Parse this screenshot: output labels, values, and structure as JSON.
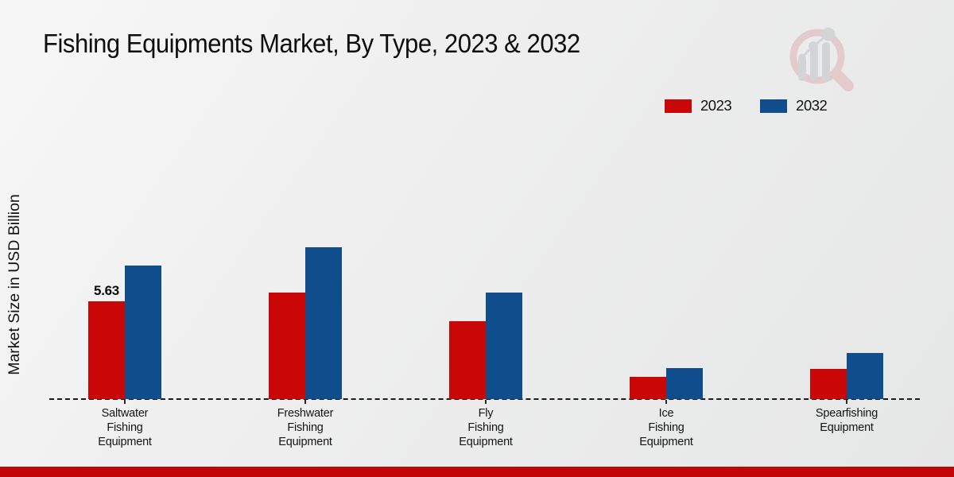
{
  "page": {
    "title": "Fishing Equipments Market, By Type, 2023 & 2032",
    "ylabel": "Market Size in USD Billion"
  },
  "legend": {
    "items": [
      {
        "label": "2023",
        "color": "#c90707"
      },
      {
        "label": "2032",
        "color": "#0f4d8c"
      }
    ]
  },
  "chart_data": {
    "type": "bar",
    "title": "Fishing Equipments Market, By Type, 2023 & 2032",
    "xlabel": "",
    "ylabel": "Market Size in USD Billion",
    "categories": [
      "Saltwater Fishing Equipment",
      "Freshwater Fishing Equipment",
      "Fly Fishing Equipment",
      "Ice Fishing Equipment",
      "Spearfishing Equipment"
    ],
    "category_label_lines": [
      [
        "Saltwater",
        "Fishing",
        "Equipment"
      ],
      [
        "Freshwater",
        "Fishing",
        "Equipment"
      ],
      [
        "Fly",
        "Fishing",
        "Equipment"
      ],
      [
        "Ice",
        "Fishing",
        "Equipment"
      ],
      [
        "Spearfishing",
        "Equipment"
      ]
    ],
    "series": [
      {
        "name": "2023",
        "color": "#c90707",
        "values": [
          5.63,
          6.15,
          4.49,
          1.27,
          1.73
        ]
      },
      {
        "name": "2032",
        "color": "#0f4d8c",
        "values": [
          7.71,
          8.73,
          6.13,
          1.77,
          2.65
        ]
      }
    ],
    "data_labels": [
      {
        "series_index": 0,
        "category_index": 0,
        "text": "5.63"
      }
    ],
    "ylim": [
      0,
      9.5
    ],
    "grid": false,
    "axis_line_style": "dashed",
    "legend_position": "top-right"
  },
  "watermark": {
    "name": "magnifier-bar-chart-logo",
    "ring_color": "#dcaab1",
    "bars_color": "#bdbec2"
  },
  "footer": {
    "color": "#c30505"
  }
}
